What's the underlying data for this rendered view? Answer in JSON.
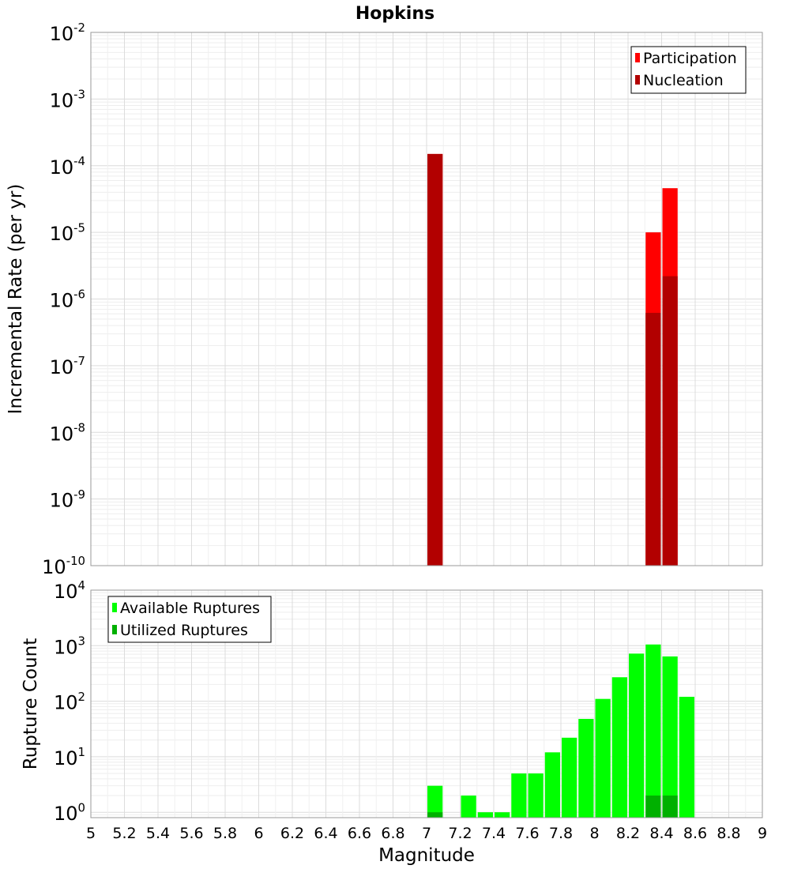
{
  "title": "Hopkins",
  "chart_data": [
    {
      "type": "bar",
      "panel": "top",
      "ylabel": "Incremental Rate (per yr)",
      "yscale": "log",
      "ylim": [
        1e-10,
        0.01
      ],
      "y_ticks": [
        {
          "base": "10",
          "exp": "-2"
        },
        {
          "base": "10",
          "exp": "-3"
        },
        {
          "base": "10",
          "exp": "-4"
        },
        {
          "base": "10",
          "exp": "-5"
        },
        {
          "base": "10",
          "exp": "-6"
        },
        {
          "base": "10",
          "exp": "-7"
        },
        {
          "base": "10",
          "exp": "-8"
        },
        {
          "base": "10",
          "exp": "-9"
        },
        {
          "base": "10",
          "exp": "-10"
        }
      ],
      "grid": true,
      "legend_position": "top-right",
      "bin_width": 0.1,
      "series": [
        {
          "name": "Participation",
          "color": "#ff0000",
          "x": [
            7.05,
            8.35,
            8.45
          ],
          "values": [
            0.00015,
            1e-05,
            4.6e-05
          ]
        },
        {
          "name": "Nucleation",
          "color": "#b20000",
          "x": [
            7.05,
            8.35,
            8.45
          ],
          "values": [
            0.00015,
            6.2e-07,
            2.2e-06
          ]
        }
      ]
    },
    {
      "type": "bar",
      "panel": "bottom",
      "xlabel": "Magnitude",
      "ylabel": "Rupture Count",
      "yscale": "log",
      "ylim": [
        0.8,
        10000
      ],
      "xlim": [
        5,
        9
      ],
      "x_ticks": [
        "5",
        "5.2",
        "5.4",
        "5.6",
        "5.8",
        "6",
        "6.2",
        "6.4",
        "6.6",
        "6.8",
        "7",
        "7.2",
        "7.4",
        "7.6",
        "7.8",
        "8",
        "8.2",
        "8.4",
        "8.6",
        "8.8",
        "9"
      ],
      "y_ticks": [
        {
          "base": "10",
          "exp": "4"
        },
        {
          "base": "10",
          "exp": "3"
        },
        {
          "base": "10",
          "exp": "2"
        },
        {
          "base": "10",
          "exp": "1"
        },
        {
          "base": "10",
          "exp": "0"
        }
      ],
      "grid": true,
      "legend_position": "top-left",
      "bin_width": 0.1,
      "series": [
        {
          "name": "Available Ruptures",
          "color": "#00ff00",
          "x": [
            7.05,
            7.25,
            7.35,
            7.45,
            7.55,
            7.65,
            7.75,
            7.85,
            7.95,
            8.05,
            8.15,
            8.25,
            8.35,
            8.45,
            8.55
          ],
          "values": [
            3,
            2,
            1,
            1,
            5,
            5,
            12,
            22,
            48,
            110,
            270,
            720,
            1050,
            640,
            120
          ]
        },
        {
          "name": "Utilized Ruptures",
          "color": "#00b000",
          "x": [
            7.05,
            8.35,
            8.45
          ],
          "values": [
            1,
            2,
            2
          ]
        }
      ]
    }
  ]
}
